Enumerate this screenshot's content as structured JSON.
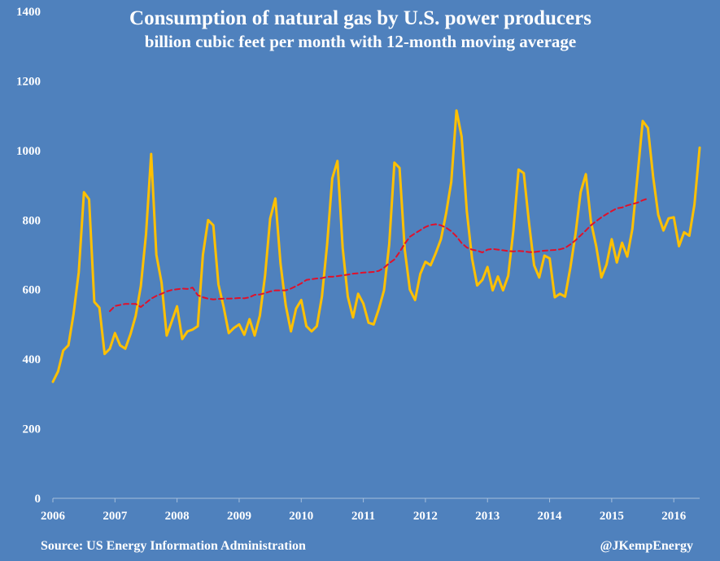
{
  "chart_data": {
    "type": "line",
    "title": "Consumption of  natural gas by U.S. power producers",
    "subtitle": "billion cubic feet per month with 12-month moving average",
    "xlabel": "",
    "ylabel": "",
    "ylim": [
      0,
      1400
    ],
    "xlim": [
      "2006-01",
      "2016-06"
    ],
    "yticks": [
      0,
      200,
      400,
      600,
      800,
      1000,
      1200,
      1400
    ],
    "xticks": [
      "2006",
      "2007",
      "2008",
      "2009",
      "2010",
      "2011",
      "2012",
      "2013",
      "2014",
      "2015",
      "2016"
    ],
    "grid": false,
    "legend": "none",
    "series": [
      {
        "color": "#ffc000",
        "style": "solid",
        "start": "2006-01",
        "values": [
          335,
          365,
          425,
          440,
          530,
          650,
          880,
          860,
          565,
          548,
          415,
          430,
          475,
          440,
          430,
          472,
          525,
          610,
          760,
          990,
          700,
          620,
          468,
          510,
          552,
          458,
          480,
          485,
          495,
          700,
          800,
          785,
          615,
          550,
          475,
          490,
          500,
          470,
          515,
          468,
          525,
          640,
          805,
          862,
          675,
          555,
          480,
          545,
          570,
          495,
          480,
          495,
          580,
          730,
          920,
          970,
          720,
          580,
          520,
          588,
          560,
          505,
          500,
          545,
          598,
          730,
          965,
          950,
          715,
          600,
          570,
          645,
          680,
          670,
          705,
          745,
          820,
          910,
          1115,
          1040,
          825,
          690,
          612,
          628,
          665,
          598,
          638,
          598,
          640,
          770,
          945,
          935,
          795,
          670,
          635,
          698,
          690,
          578,
          588,
          580,
          662,
          760,
          880,
          932,
          795,
          725,
          635,
          672,
          745,
          678,
          735,
          695,
          775,
          930,
          1085,
          1065,
          925,
          815,
          770,
          805,
          808,
          725,
          765,
          755,
          845,
          1008
        ]
      },
      {
        "color": "#e0112b",
        "style": "dashed",
        "start": "2006-12",
        "values": [
          538,
          553,
          556,
          559,
          559,
          559,
          550,
          562,
          574,
          582,
          588,
          595,
          599,
          601,
          603,
          602,
          606,
          584,
          578,
          574,
          572,
          573,
          574,
          574,
          575,
          576,
          575,
          578,
          585,
          586,
          590,
          595,
          598,
          598,
          598,
          603,
          610,
          618,
          628,
          630,
          632,
          633,
          637,
          637,
          639,
          641,
          643,
          646,
          647,
          649,
          650,
          651,
          654,
          663,
          676,
          687,
          708,
          732,
          752,
          762,
          771,
          780,
          786,
          788,
          785,
          778,
          768,
          753,
          734,
          721,
          715,
          712,
          707,
          715,
          717,
          715,
          713,
          711,
          710,
          711,
          710,
          708,
          708,
          710,
          712,
          713,
          714,
          716,
          720,
          730,
          742,
          756,
          770,
          785,
          797,
          808,
          817,
          826,
          834,
          836,
          842,
          846,
          850,
          857,
          862
        ]
      }
    ]
  },
  "footer": {
    "source": "Source: US Energy Information Administration",
    "handle": "@JKempEnergy"
  }
}
